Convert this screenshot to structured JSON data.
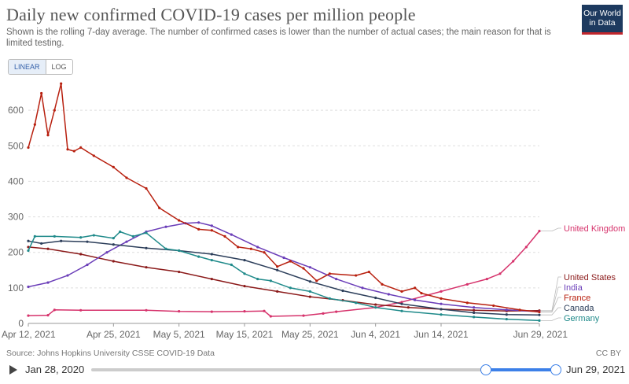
{
  "header": {
    "title": "Daily new confirmed COVID-19 cases per million people",
    "subtitle": "Shown is the rolling 7-day average. The number of confirmed cases is lower than the number of actual cases; the main reason for that is limited testing.",
    "logo_line1": "Our World",
    "logo_line2": "in Data"
  },
  "controls": {
    "linear_label": "LINEAR",
    "log_label": "LOG",
    "active": "LINEAR"
  },
  "footer": {
    "source": "Source: Johns Hopkins University CSSE COVID-19 Data",
    "license": "CC BY"
  },
  "timeline": {
    "start_label": "Jan 28, 2020",
    "end_label": "Jun 29, 2021"
  },
  "colors": {
    "United Kingdom": "#d6336c",
    "United States": "#8b1a1a",
    "India": "#6a3db8",
    "France": "#b8200f",
    "Canada": "#2c3e5a",
    "Germany": "#1f8a8a"
  },
  "chart_data": {
    "type": "line",
    "title": "Daily new confirmed COVID-19 cases per million people",
    "ylim": [
      0,
      700
    ],
    "yticks": [
      0,
      100,
      200,
      300,
      400,
      500,
      600
    ],
    "grid": "horizontal dashed",
    "xlim": [
      "2021-04-12",
      "2021-06-29"
    ],
    "xticks": [
      "2021-04-12",
      "2021-04-25",
      "2021-05-05",
      "2021-05-15",
      "2021-05-25",
      "2021-06-04",
      "2021-06-14",
      "2021-06-29"
    ],
    "xtick_labels": [
      "Apr 12, 2021",
      "Apr 25, 2021",
      "May 5, 2021",
      "May 15, 2021",
      "May 25, 2021",
      "Jun 4, 2021",
      "Jun 14, 2021",
      "Jun 29, 2021"
    ],
    "legend_placement": "right end labels",
    "series": [
      {
        "name": "United Kingdom",
        "points": [
          [
            "2021-04-12",
            22
          ],
          [
            "2021-04-15",
            23
          ],
          [
            "2021-04-16",
            38
          ],
          [
            "2021-04-20",
            37
          ],
          [
            "2021-04-30",
            37
          ],
          [
            "2021-05-05",
            34
          ],
          [
            "2021-05-10",
            33
          ],
          [
            "2021-05-15",
            34
          ],
          [
            "2021-05-18",
            35
          ],
          [
            "2021-05-19",
            20
          ],
          [
            "2021-05-24",
            22
          ],
          [
            "2021-05-27",
            28
          ],
          [
            "2021-05-29",
            33
          ],
          [
            "2021-06-04",
            45
          ],
          [
            "2021-06-08",
            60
          ],
          [
            "2021-06-14",
            90
          ],
          [
            "2021-06-18",
            110
          ],
          [
            "2021-06-21",
            125
          ],
          [
            "2021-06-23",
            140
          ],
          [
            "2021-06-25",
            175
          ],
          [
            "2021-06-27",
            215
          ],
          [
            "2021-06-29",
            260
          ]
        ]
      },
      {
        "name": "United States",
        "points": [
          [
            "2021-04-12",
            215
          ],
          [
            "2021-04-15",
            210
          ],
          [
            "2021-04-20",
            195
          ],
          [
            "2021-04-25",
            175
          ],
          [
            "2021-04-30",
            158
          ],
          [
            "2021-05-05",
            145
          ],
          [
            "2021-05-10",
            125
          ],
          [
            "2021-05-15",
            105
          ],
          [
            "2021-05-20",
            90
          ],
          [
            "2021-05-25",
            75
          ],
          [
            "2021-05-30",
            65
          ],
          [
            "2021-06-04",
            53
          ],
          [
            "2021-06-09",
            45
          ],
          [
            "2021-06-14",
            40
          ],
          [
            "2021-06-19",
            37
          ],
          [
            "2021-06-24",
            35
          ],
          [
            "2021-06-29",
            36
          ]
        ]
      },
      {
        "name": "India",
        "points": [
          [
            "2021-04-12",
            103
          ],
          [
            "2021-04-15",
            115
          ],
          [
            "2021-04-18",
            135
          ],
          [
            "2021-04-21",
            165
          ],
          [
            "2021-04-24",
            200
          ],
          [
            "2021-04-27",
            230
          ],
          [
            "2021-04-30",
            258
          ],
          [
            "2021-05-03",
            272
          ],
          [
            "2021-05-06",
            282
          ],
          [
            "2021-05-08",
            284
          ],
          [
            "2021-05-10",
            275
          ],
          [
            "2021-05-13",
            250
          ],
          [
            "2021-05-17",
            215
          ],
          [
            "2021-05-21",
            185
          ],
          [
            "2021-05-25",
            158
          ],
          [
            "2021-05-29",
            125
          ],
          [
            "2021-06-02",
            100
          ],
          [
            "2021-06-06",
            82
          ],
          [
            "2021-06-10",
            66
          ],
          [
            "2021-06-14",
            55
          ],
          [
            "2021-06-19",
            45
          ],
          [
            "2021-06-24",
            38
          ],
          [
            "2021-06-29",
            33
          ]
        ]
      },
      {
        "name": "France",
        "points": [
          [
            "2021-04-12",
            495
          ],
          [
            "2021-04-13",
            560
          ],
          [
            "2021-04-14",
            648
          ],
          [
            "2021-04-15",
            530
          ],
          [
            "2021-04-16",
            600
          ],
          [
            "2021-04-17",
            675
          ],
          [
            "2021-04-18",
            490
          ],
          [
            "2021-04-19",
            485
          ],
          [
            "2021-04-20",
            495
          ],
          [
            "2021-04-22",
            472
          ],
          [
            "2021-04-25",
            440
          ],
          [
            "2021-04-27",
            410
          ],
          [
            "2021-04-30",
            380
          ],
          [
            "2021-05-02",
            325
          ],
          [
            "2021-05-05",
            290
          ],
          [
            "2021-05-08",
            265
          ],
          [
            "2021-05-10",
            262
          ],
          [
            "2021-05-12",
            245
          ],
          [
            "2021-05-14",
            215
          ],
          [
            "2021-05-16",
            210
          ],
          [
            "2021-05-18",
            200
          ],
          [
            "2021-05-20",
            160
          ],
          [
            "2021-05-22",
            175
          ],
          [
            "2021-05-24",
            155
          ],
          [
            "2021-05-26",
            120
          ],
          [
            "2021-05-28",
            140
          ],
          [
            "2021-06-01",
            135
          ],
          [
            "2021-06-03",
            145
          ],
          [
            "2021-06-05",
            110
          ],
          [
            "2021-06-08",
            90
          ],
          [
            "2021-06-10",
            100
          ],
          [
            "2021-06-11",
            85
          ],
          [
            "2021-06-14",
            70
          ],
          [
            "2021-06-18",
            58
          ],
          [
            "2021-06-22",
            50
          ],
          [
            "2021-06-26",
            38
          ],
          [
            "2021-06-29",
            32
          ]
        ]
      },
      {
        "name": "Canada",
        "points": [
          [
            "2021-04-12",
            232
          ],
          [
            "2021-04-14",
            225
          ],
          [
            "2021-04-17",
            232
          ],
          [
            "2021-04-21",
            230
          ],
          [
            "2021-04-25",
            222
          ],
          [
            "2021-04-30",
            212
          ],
          [
            "2021-05-05",
            205
          ],
          [
            "2021-05-10",
            195
          ],
          [
            "2021-05-15",
            178
          ],
          [
            "2021-05-20",
            150
          ],
          [
            "2021-05-25",
            118
          ],
          [
            "2021-05-30",
            92
          ],
          [
            "2021-06-04",
            72
          ],
          [
            "2021-06-08",
            55
          ],
          [
            "2021-06-14",
            40
          ],
          [
            "2021-06-19",
            30
          ],
          [
            "2021-06-24",
            25
          ],
          [
            "2021-06-29",
            24
          ]
        ]
      },
      {
        "name": "Germany",
        "points": [
          [
            "2021-04-12",
            205
          ],
          [
            "2021-04-13",
            245
          ],
          [
            "2021-04-16",
            245
          ],
          [
            "2021-04-20",
            242
          ],
          [
            "2021-04-22",
            248
          ],
          [
            "2021-04-25",
            240
          ],
          [
            "2021-04-26",
            258
          ],
          [
            "2021-04-28",
            245
          ],
          [
            "2021-04-30",
            255
          ],
          [
            "2021-05-03",
            210
          ],
          [
            "2021-05-05",
            205
          ],
          [
            "2021-05-08",
            188
          ],
          [
            "2021-05-10",
            178
          ],
          [
            "2021-05-13",
            165
          ],
          [
            "2021-05-15",
            140
          ],
          [
            "2021-05-17",
            125
          ],
          [
            "2021-05-19",
            120
          ],
          [
            "2021-05-22",
            100
          ],
          [
            "2021-05-25",
            90
          ],
          [
            "2021-05-28",
            70
          ],
          [
            "2021-06-01",
            58
          ],
          [
            "2021-06-04",
            45
          ],
          [
            "2021-06-08",
            35
          ],
          [
            "2021-06-14",
            25
          ],
          [
            "2021-06-19",
            18
          ],
          [
            "2021-06-24",
            12
          ],
          [
            "2021-06-29",
            8
          ]
        ]
      }
    ]
  }
}
